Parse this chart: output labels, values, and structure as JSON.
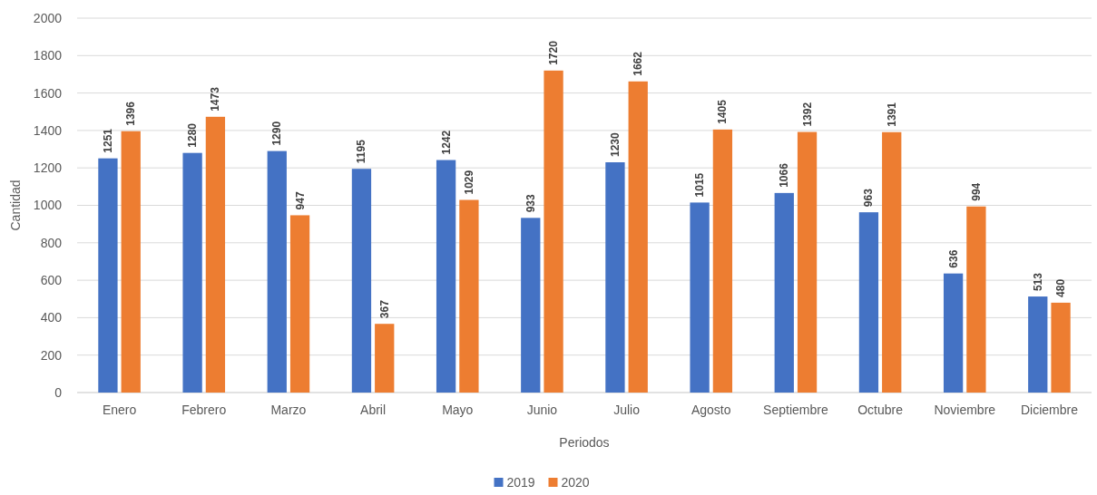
{
  "chart_data": {
    "type": "bar",
    "xlabel": "Periodos",
    "ylabel": "Cantidad",
    "categories": [
      "Enero",
      "Febrero",
      "Marzo",
      "Abril",
      "Mayo",
      "Junio",
      "Julio",
      "Agosto",
      "Septiembre",
      "Octubre",
      "Noviembre",
      "Diciembre"
    ],
    "series": [
      {
        "name": "2019",
        "color": "#4472c4",
        "values": [
          1251,
          1280,
          1290,
          1195,
          1242,
          933,
          1230,
          1015,
          1066,
          963,
          636,
          513
        ]
      },
      {
        "name": "2020",
        "color": "#ed7d31",
        "values": [
          1396,
          1473,
          947,
          367,
          1029,
          1720,
          1662,
          1405,
          1392,
          1391,
          994,
          480
        ]
      }
    ],
    "ylim": [
      0,
      2000
    ],
    "yticks": [
      0,
      200,
      400,
      600,
      800,
      1000,
      1200,
      1400,
      1600,
      1800,
      2000
    ],
    "grid": "y",
    "data_labels": true,
    "legend": "bottom"
  }
}
